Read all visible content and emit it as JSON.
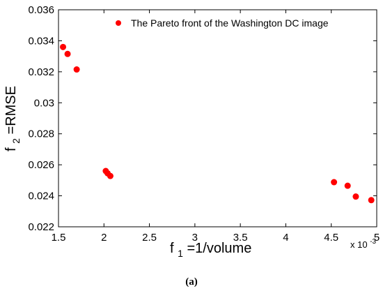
{
  "chart_data": {
    "type": "scatter",
    "series": [
      {
        "name": "The Pareto front of the Washington DC image",
        "color": "#ff0000",
        "x": [
          1.55,
          1.6,
          1.7,
          2.02,
          2.04,
          2.07,
          4.53,
          4.68,
          4.77,
          4.94
        ],
        "y": [
          0.0336,
          0.03315,
          0.03215,
          0.0256,
          0.02545,
          0.02528,
          0.02488,
          0.02465,
          0.02395,
          0.02372
        ]
      }
    ],
    "xlim": [
      1.5,
      5
    ],
    "ylim": [
      0.022,
      0.036
    ],
    "x_ticks": [
      "1.5",
      "2",
      "2.5",
      "3",
      "3.5",
      "4",
      "4.5",
      "5"
    ],
    "y_ticks": [
      "0.022",
      "0.024",
      "0.026",
      "0.028",
      "0.03",
      "0.032",
      "0.034",
      "0.036"
    ],
    "x_multiplier": {
      "base": "x 10",
      "exponent": "-3"
    },
    "xlabel": {
      "main": "f",
      "sub": "1",
      "rest": "=1/volume"
    },
    "ylabel": {
      "main": "f",
      "sub": "2",
      "rest": "=RMSE"
    },
    "legend": {
      "position": "top-right",
      "label": "The Pareto front of the Washington DC image"
    },
    "grid": false,
    "caption": "(a)"
  }
}
